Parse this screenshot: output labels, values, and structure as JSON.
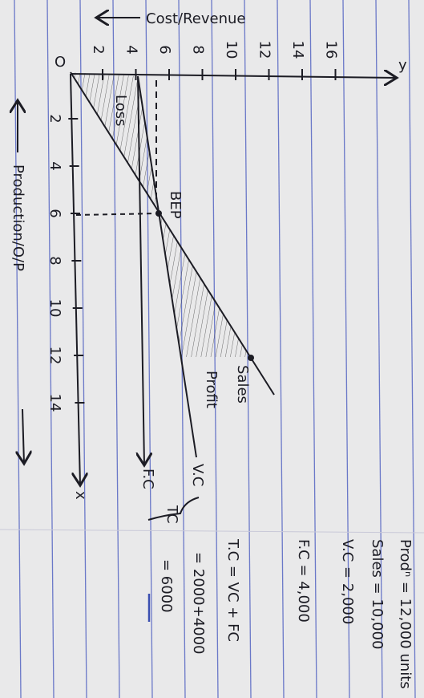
{
  "axes": {
    "y_label": "Cost/Revenue",
    "x_label": "Production/O/P",
    "origin": "O",
    "y_letter": "y",
    "x_letter": "x",
    "cost_ticks": [
      "2",
      "4",
      "6",
      "8",
      "10",
      "12",
      "14",
      "16"
    ],
    "production_ticks": [
      "2",
      "4",
      "6",
      "8",
      "10",
      "12",
      "14"
    ]
  },
  "labels": {
    "bep": "BEP",
    "sales": "Sales",
    "profit": "Profit",
    "loss": "Loss",
    "vc": "V.C",
    "fc": "F.C",
    "tc": "TC"
  },
  "notes": [
    "Prodⁿ = 12,000 units",
    "Sales = 10,000",
    "V.C = 2,000",
    "F.C = 4,000",
    "T.C = VC + FC",
    "= 2000+4000",
    "= 6000"
  ]
}
